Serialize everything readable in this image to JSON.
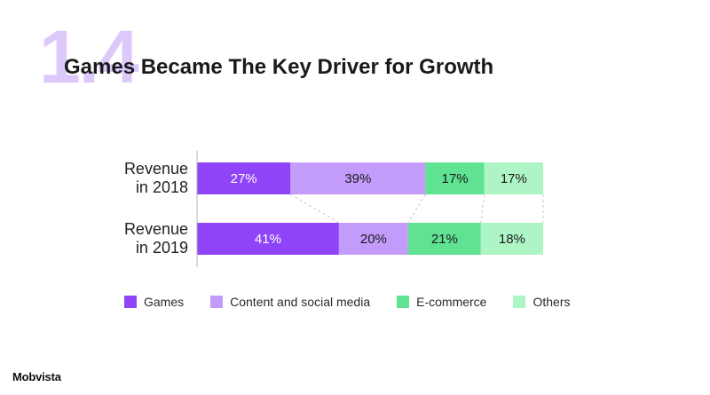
{
  "slide": {
    "section_number": "1.4",
    "title": "Games Became The Key Driver for Growth",
    "logo_text": "Mobvista"
  },
  "chart_data": {
    "type": "bar",
    "orientation": "horizontal",
    "stacked": true,
    "normalized": true,
    "categories": [
      "Revenue in 2018",
      "Revenue in 2019"
    ],
    "series": [
      {
        "name": "Games",
        "values": [
          27,
          41
        ],
        "labels": [
          "27%",
          "41%"
        ],
        "color": "#8f45f7"
      },
      {
        "name": "Content and social media",
        "values": [
          39,
          20
        ],
        "labels": [
          "39%",
          "20%"
        ],
        "color": "#c39cfb"
      },
      {
        "name": "E-commerce",
        "values": [
          17,
          21
        ],
        "labels": [
          "17%",
          "21%"
        ],
        "color": "#5fe292"
      },
      {
        "name": "Others",
        "values": [
          17,
          18
        ],
        "labels": [
          "17%",
          "18%"
        ],
        "color": "#aef5c6"
      }
    ],
    "legend_position": "bottom",
    "grid": false
  },
  "category_lines": [
    [
      "Revenue",
      "in 2018"
    ],
    [
      "Revenue",
      "in 2019"
    ]
  ]
}
